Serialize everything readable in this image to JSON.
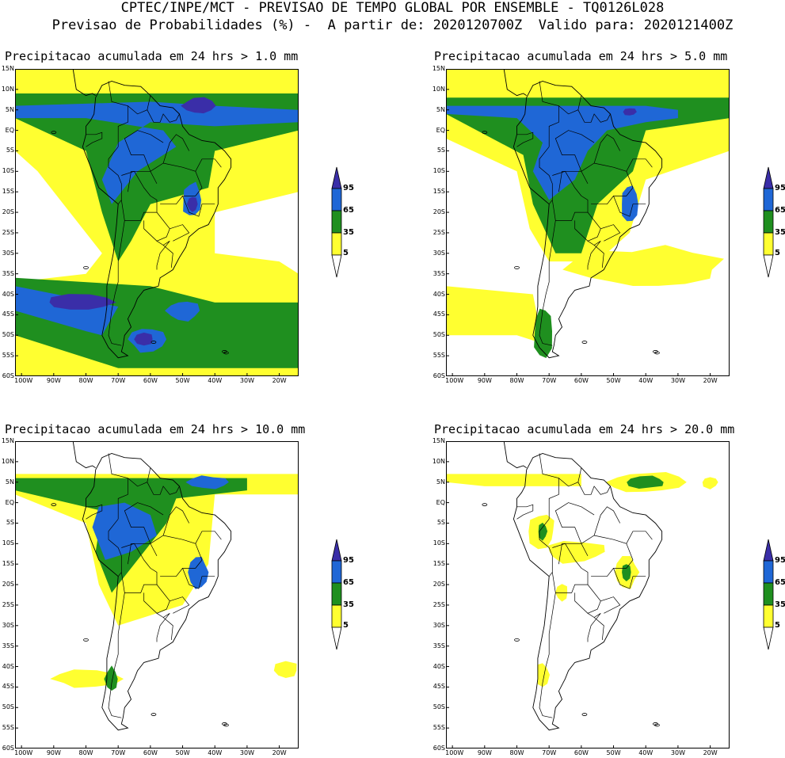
{
  "header": {
    "line1": "CPTEC/INPE/MCT - PREVISAO DE TEMPO GLOBAL POR ENSEMBLE - TQ0126L028",
    "line2": "Previsao de Probabilidades (%) -  A partir de: 2020120700Z  Valido para: 2020121400Z"
  },
  "axes": {
    "y_ticks": [
      "15N",
      "10N",
      "5N",
      "EQ",
      "5S",
      "10S",
      "15S",
      "20S",
      "25S",
      "30S",
      "35S",
      "40S",
      "45S",
      "50S",
      "55S",
      "60S"
    ],
    "x_ticks": [
      "100W",
      "90W",
      "80W",
      "70W",
      "60W",
      "50W",
      "40W",
      "30W",
      "20W"
    ]
  },
  "colorbar": {
    "labels": [
      "95",
      "65",
      "35",
      "5"
    ],
    "colors": {
      "c95": "#3a2ea8",
      "c65": "#1f67d6",
      "c35": "#1f8f1f",
      "c5": "#ffff30"
    }
  },
  "panels": [
    {
      "title": "Precipitacao acumulada em 24 hrs > 1.0 mm"
    },
    {
      "title": "Precipitacao acumulada em 24 hrs > 5.0 mm"
    },
    {
      "title": "Precipitacao acumulada em 24 hrs > 10.0 mm"
    },
    {
      "title": "Precipitacao acumulada em 24 hrs > 20.0 mm"
    }
  ]
}
